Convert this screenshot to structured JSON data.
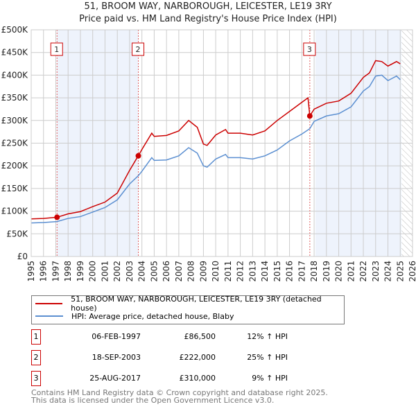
{
  "chart_data": {
    "type": "line",
    "title": "51, BROOM WAY, NARBOROUGH, LEICESTER, LE19 3RY",
    "subtitle": "Price paid vs. HM Land Registry's House Price Index (HPI)",
    "xlim": [
      1995,
      2026
    ],
    "ylim": [
      0,
      500000
    ],
    "x_ticks": [
      "1995",
      "1996",
      "1997",
      "1998",
      "1999",
      "2000",
      "2001",
      "2002",
      "2003",
      "2004",
      "2005",
      "2006",
      "2007",
      "2008",
      "2009",
      "2010",
      "2011",
      "2012",
      "2013",
      "2014",
      "2015",
      "2016",
      "2017",
      "2018",
      "2019",
      "2020",
      "2021",
      "2022",
      "2023",
      "2024",
      "2025",
      "2026"
    ],
    "y_ticks": [
      {
        "v": 0,
        "label": "£0"
      },
      {
        "v": 50000,
        "label": "£50K"
      },
      {
        "v": 100000,
        "label": "£100K"
      },
      {
        "v": 150000,
        "label": "£150K"
      },
      {
        "v": 200000,
        "label": "£200K"
      },
      {
        "v": 250000,
        "label": "£250K"
      },
      {
        "v": 300000,
        "label": "£300K"
      },
      {
        "v": 350000,
        "label": "£350K"
      },
      {
        "v": 400000,
        "label": "£400K"
      },
      {
        "v": 450000,
        "label": "£450K"
      },
      {
        "v": 500000,
        "label": "£500K"
      }
    ],
    "grid": true,
    "series": [
      {
        "name": "51, BROOM WAY, NARBOROUGH, LEICESTER, LE19 3RY (detached house)",
        "color": "#cc0000",
        "x": [
          1995,
          1996,
          1997.1,
          1998,
          1999,
          2000,
          2001,
          2002,
          2003,
          2003.7,
          2004,
          2004.8,
          2005,
          2006,
          2007,
          2007.8,
          2008.5,
          2009,
          2009.3,
          2010,
          2010.8,
          2011,
          2012,
          2013,
          2014,
          2015,
          2016,
          2017,
          2017.5,
          2017.65,
          2018,
          2019,
          2020,
          2021,
          2022,
          2022.5,
          2023,
          2023.5,
          2024,
          2024.7,
          2025
        ],
        "y": [
          83000,
          84000,
          86500,
          94000,
          99000,
          110000,
          120000,
          140000,
          190000,
          222000,
          236000,
          272000,
          265000,
          267000,
          277000,
          300000,
          285000,
          248000,
          245000,
          268000,
          280000,
          272000,
          272000,
          268000,
          277000,
          300000,
          320000,
          340000,
          350000,
          310000,
          325000,
          338000,
          343000,
          360000,
          395000,
          405000,
          432000,
          430000,
          420000,
          430000,
          425000
        ]
      },
      {
        "name": "HPI: Average price, detached house, Blaby",
        "color": "#5b8fd1",
        "x": [
          1995,
          1996,
          1997.1,
          1998,
          1999,
          2000,
          2001,
          2002,
          2003,
          2003.7,
          2004,
          2004.8,
          2005,
          2006,
          2007,
          2007.8,
          2008.5,
          2009,
          2009.3,
          2010,
          2010.8,
          2011,
          2012,
          2013,
          2014,
          2015,
          2016,
          2017,
          2017.65,
          2018,
          2019,
          2020,
          2021,
          2022,
          2022.5,
          2023,
          2023.5,
          2024,
          2024.7,
          2025
        ],
        "y": [
          74000,
          75000,
          77000,
          84000,
          88000,
          98000,
          108000,
          125000,
          160000,
          178000,
          188000,
          218000,
          212000,
          213000,
          222000,
          240000,
          228000,
          200000,
          197000,
          215000,
          225000,
          218000,
          218000,
          215000,
          222000,
          235000,
          255000,
          270000,
          282000,
          298000,
          310000,
          315000,
          330000,
          365000,
          375000,
          398000,
          400000,
          388000,
          398000,
          390000
        ]
      }
    ],
    "sales": [
      {
        "n": "1",
        "x": 1997.1,
        "y": 86500
      },
      {
        "n": "2",
        "x": 2003.71,
        "y": 222000
      },
      {
        "n": "3",
        "x": 2017.65,
        "y": 310000
      }
    ],
    "legend_placement": "below"
  },
  "sales_table": [
    {
      "n": "1",
      "date": "06-FEB-1997",
      "price": "£86,500",
      "hpi": "12% ↑ HPI"
    },
    {
      "n": "2",
      "date": "18-SEP-2003",
      "price": "£222,000",
      "hpi": "25% ↑ HPI"
    },
    {
      "n": "3",
      "date": "25-AUG-2017",
      "price": "£310,000",
      "hpi": "9% ↑ HPI"
    }
  ],
  "footer": [
    "Contains HM Land Registry data © Crown copyright and database right 2025.",
    "This data is licensed under the Open Government Licence v3.0."
  ]
}
